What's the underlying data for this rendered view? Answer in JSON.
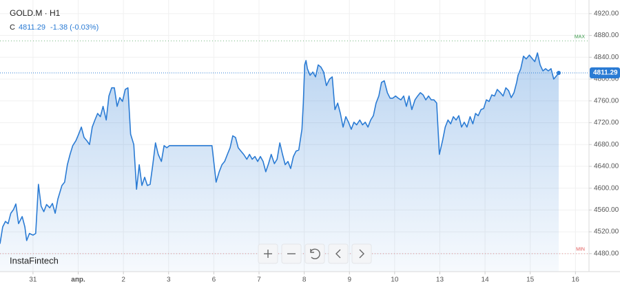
{
  "header": {
    "symbol": "GOLD.M · H1",
    "ohlc_prefix": "C",
    "close": "4811.29",
    "change": "-1.38 (-0.03%)"
  },
  "watermark": "InstaFintech",
  "chart_data": {
    "type": "area",
    "color": "#2a7bd4",
    "x": [
      -0.73,
      -0.67,
      -0.61,
      -0.55,
      -0.49,
      -0.43,
      -0.38,
      -0.32,
      -0.24,
      -0.18,
      -0.14,
      -0.08,
      0.0,
      0.06,
      0.12,
      0.18,
      0.24,
      0.3,
      0.37,
      0.43,
      0.49,
      0.55,
      0.64,
      0.7,
      0.76,
      0.82,
      0.88,
      0.95,
      1.01,
      1.07,
      1.13,
      1.19,
      1.25,
      1.31,
      1.37,
      1.43,
      1.49,
      1.55,
      1.62,
      1.68,
      1.74,
      1.8,
      1.86,
      1.92,
      1.98,
      2.04,
      2.1,
      2.16,
      2.23,
      2.29,
      2.35,
      2.41,
      2.47,
      2.53,
      2.59,
      2.65,
      2.71,
      2.77,
      2.84,
      2.9,
      2.96,
      3.02,
      3.08,
      3.96,
      4.05,
      4.12,
      4.18,
      4.24,
      4.3,
      4.36,
      4.42,
      4.48,
      4.54,
      4.6,
      4.66,
      4.73,
      4.79,
      4.85,
      4.91,
      4.97,
      5.03,
      5.09,
      5.15,
      5.21,
      5.27,
      5.34,
      5.4,
      5.46,
      5.52,
      5.58,
      5.64,
      5.7,
      5.76,
      5.82,
      5.88,
      5.95,
      5.98,
      6.01,
      6.04,
      6.07,
      6.13,
      6.19,
      6.25,
      6.31,
      6.37,
      6.43,
      6.49,
      6.56,
      6.62,
      6.68,
      6.74,
      6.8,
      6.86,
      6.92,
      6.98,
      7.04,
      7.1,
      7.16,
      7.23,
      7.29,
      7.35,
      7.41,
      7.47,
      7.53,
      7.59,
      7.65,
      7.71,
      7.77,
      7.84,
      7.9,
      7.96,
      8.02,
      8.08,
      8.14,
      8.2,
      8.26,
      8.32,
      8.38,
      8.45,
      8.51,
      8.57,
      8.63,
      8.69,
      8.75,
      8.81,
      8.87,
      8.93,
      8.99,
      9.06,
      9.12,
      9.18,
      9.24,
      9.3,
      9.36,
      9.42,
      9.48,
      9.54,
      9.6,
      9.67,
      9.73,
      9.79,
      9.85,
      9.91,
      9.97,
      10.03,
      10.09,
      10.15,
      10.21,
      10.27,
      10.34,
      10.4,
      10.46,
      10.52,
      10.58,
      10.64,
      10.7,
      10.73,
      10.79,
      10.85,
      10.91,
      10.98,
      11.04,
      11.1,
      11.16,
      11.22,
      11.28,
      11.34,
      11.4,
      11.46,
      11.52,
      11.59,
      11.63
    ],
    "values": [
      4498,
      4529,
      4539,
      4535,
      4554,
      4561,
      4571,
      4535,
      4548,
      4529,
      4504,
      4517,
      4514,
      4517,
      4607,
      4567,
      4557,
      4570,
      4564,
      4572,
      4554,
      4580,
      4605,
      4611,
      4643,
      4662,
      4678,
      4687,
      4699,
      4712,
      4693,
      4687,
      4680,
      4712,
      4725,
      4737,
      4731,
      4750,
      4725,
      4769,
      4784,
      4784,
      4750,
      4766,
      4759,
      4781,
      4784,
      4699,
      4680,
      4598,
      4643,
      4605,
      4620,
      4605,
      4607,
      4643,
      4683,
      4662,
      4649,
      4678,
      4674,
      4678,
      4678,
      4678,
      4611,
      4630,
      4643,
      4649,
      4662,
      4674,
      4696,
      4693,
      4674,
      4668,
      4662,
      4653,
      4662,
      4653,
      4658,
      4649,
      4658,
      4649,
      4630,
      4645,
      4662,
      4645,
      4653,
      4683,
      4662,
      4643,
      4649,
      4636,
      4658,
      4668,
      4670,
      4708,
      4756,
      4826,
      4834,
      4819,
      4807,
      4813,
      4804,
      4826,
      4822,
      4813,
      4788,
      4800,
      4804,
      4744,
      4756,
      4737,
      4712,
      4731,
      4721,
      4708,
      4721,
      4716,
      4725,
      4716,
      4721,
      4712,
      4725,
      4733,
      4756,
      4769,
      4794,
      4797,
      4775,
      4765,
      4765,
      4769,
      4765,
      4762,
      4769,
      4750,
      4769,
      4744,
      4762,
      4769,
      4775,
      4771,
      4762,
      4769,
      4762,
      4762,
      4756,
      4662,
      4687,
      4712,
      4725,
      4718,
      4731,
      4725,
      4733,
      4712,
      4721,
      4712,
      4731,
      4718,
      4737,
      4733,
      4744,
      4746,
      4762,
      4759,
      4771,
      4769,
      4781,
      4775,
      4769,
      4784,
      4779,
      4766,
      4775,
      4794,
      4807,
      4819,
      4842,
      4837,
      4844,
      4838,
      4832,
      4848,
      4826,
      4815,
      4819,
      4815,
      4819,
      4800,
      4807,
      4811.29
    ],
    "xlim": [
      -0.73,
      12.3
    ],
    "xticks": [
      {
        "value": 0,
        "label": "31"
      },
      {
        "value": 1,
        "label": "апр."
      },
      2,
      3,
      {
        "value": 4,
        "label": "6"
      },
      {
        "value": 5,
        "label": "7"
      },
      {
        "value": 6,
        "label": "8"
      },
      {
        "value": 7,
        "label": "9"
      },
      {
        "value": 8,
        "label": "10"
      },
      {
        "value": 9,
        "label": "13"
      },
      {
        "value": 10,
        "label": "14"
      },
      {
        "value": 11,
        "label": "15"
      },
      {
        "value": 12,
        "label": "16"
      }
    ],
    "ylim": [
      4447,
      4945
    ],
    "yticks": [
      {
        "value": 4480,
        "label": "4480.00"
      },
      {
        "value": 4520,
        "label": "4520.00"
      },
      {
        "value": 4560,
        "label": "4560.00"
      },
      {
        "value": 4600,
        "label": "4600.00"
      },
      {
        "value": 4640,
        "label": "4640.00"
      },
      {
        "value": 4680,
        "label": "4680.00"
      },
      {
        "value": 4720,
        "label": "4720.00"
      },
      {
        "value": 4760,
        "label": "4760.00"
      },
      {
        "value": 4800,
        "label": "4800.00"
      },
      {
        "value": 4840,
        "label": "4840.00"
      },
      {
        "value": 4880,
        "label": "4880.00"
      },
      {
        "value": 4920,
        "label": "4920.00"
      }
    ],
    "grid": true,
    "price_line": {
      "value": 4811.29,
      "label": "4811.29",
      "color": "#2a7bd4"
    },
    "levels": [
      {
        "label": "MAX",
        "value": 4870,
        "color": "#3a9a4a"
      },
      {
        "label": "MIN",
        "value": 4480,
        "color": "#e05a5a"
      }
    ]
  }
}
